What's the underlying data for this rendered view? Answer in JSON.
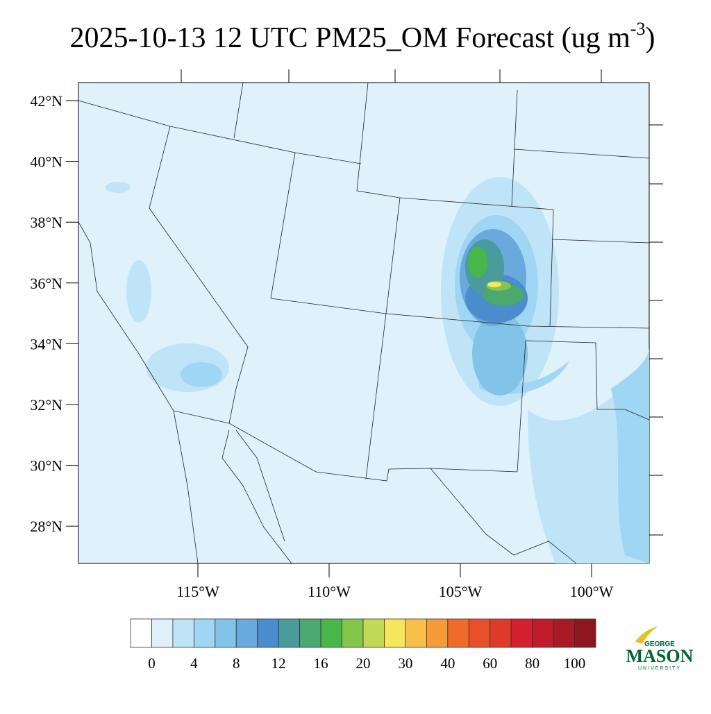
{
  "map": {
    "title": {
      "main": "2025-10-13 12 UTC PM25_OM Forecast (ug m",
      "superscript": "-3",
      "end": ")"
    },
    "lat_ticks": [
      {
        "value": 42,
        "label": "42°N"
      },
      {
        "value": 40,
        "label": "40°N"
      },
      {
        "value": 38,
        "label": "38°N"
      },
      {
        "value": 36,
        "label": "36°N"
      },
      {
        "value": 34,
        "label": "34°N"
      },
      {
        "value": 32,
        "label": "32°N"
      },
      {
        "value": 30,
        "label": "30°N"
      },
      {
        "value": 28,
        "label": "28°N"
      }
    ],
    "lon_ticks": [
      {
        "value": -115,
        "label": "115°W"
      },
      {
        "value": -110,
        "label": "110°W"
      },
      {
        "value": -105,
        "label": "105°W"
      },
      {
        "value": -100,
        "label": "100°W"
      }
    ],
    "colorbar": {
      "colors": [
        "#ffffff",
        "#dff1fb",
        "#bfe4f7",
        "#9fd6f4",
        "#83c3e8",
        "#6aa9dd",
        "#4a8ccc",
        "#4a9b9b",
        "#4aa870",
        "#48b74a",
        "#84c54c",
        "#c2d955",
        "#f5e65a",
        "#f8c04a",
        "#f79a3a",
        "#f26a2a",
        "#e8502a",
        "#e03a28",
        "#d42030",
        "#c01c2a",
        "#aa1a26",
        "#8e1620"
      ],
      "labels": [
        0,
        4,
        8,
        12,
        16,
        20,
        30,
        40,
        60,
        80,
        100
      ]
    },
    "logo": {
      "top": "GEORGE",
      "name": "MASON",
      "bottom": "UNIVERSITY"
    }
  }
}
